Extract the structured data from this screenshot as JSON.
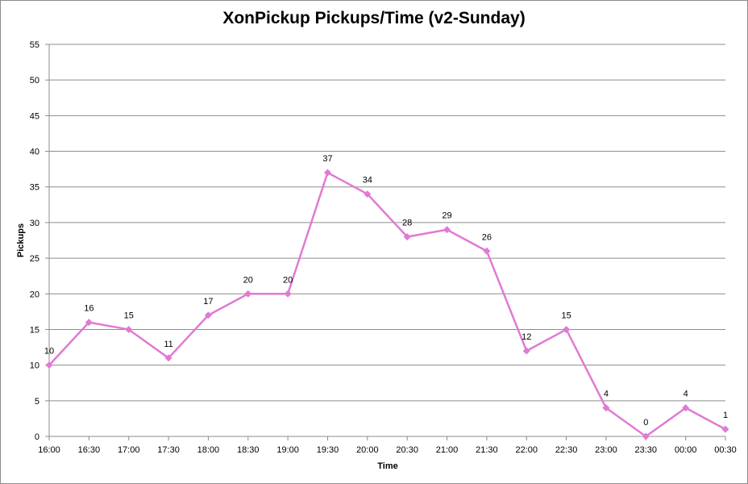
{
  "chart_data": {
    "type": "line",
    "title": "XonPickup Pickups/Time (v2-Sunday)",
    "xlabel": "Time",
    "ylabel": "Pickups",
    "ylim": [
      0,
      55
    ],
    "yticks": [
      0,
      5,
      10,
      15,
      20,
      25,
      30,
      35,
      40,
      45,
      50,
      55
    ],
    "grid": true,
    "legend": "none",
    "categories": [
      "16:00",
      "16:30",
      "17:00",
      "17:30",
      "18:00",
      "18:30",
      "19:00",
      "19:30",
      "20:00",
      "20:30",
      "21:00",
      "21:30",
      "22:00",
      "22:30",
      "23:00",
      "23:30",
      "00:00",
      "00:30"
    ],
    "series": [
      {
        "color": "#e07ad4",
        "values": [
          10,
          16,
          15,
          11,
          17,
          20,
          20,
          37,
          34,
          28,
          29,
          26,
          12,
          15,
          4,
          0,
          4,
          1
        ]
      }
    ]
  }
}
